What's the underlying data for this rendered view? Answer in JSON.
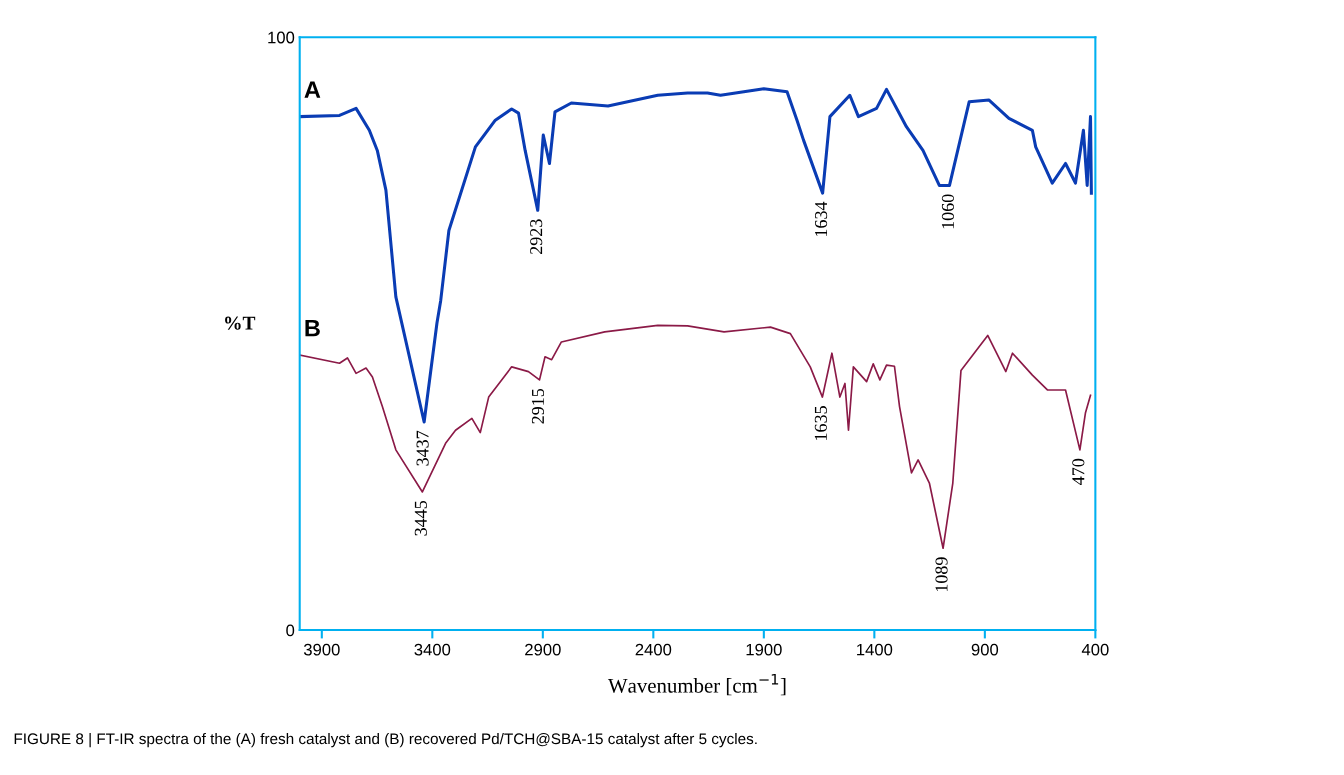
{
  "chart_data": {
    "type": "line",
    "xlabel": "Wavenumber [cm$^{−1}$]",
    "ylabel": "%T",
    "xlim": [
      4000,
      400
    ],
    "xticks": [
      3900,
      3400,
      2900,
      2400,
      1900,
      1400,
      900,
      400
    ],
    "ylim": [
      0,
      100
    ],
    "yticks": [
      0,
      100
    ],
    "grid": false,
    "legend": false,
    "marker": "none",
    "line_style": "solid",
    "series": [
      {
        "name": "A",
        "color": "#0a3cb4",
        "x": [
          4000,
          3820,
          3745,
          3685,
          3649,
          3610,
          3565,
          3437,
          3379,
          3362,
          3325,
          3205,
          3115,
          3041,
          3010,
          2980,
          2923,
          2898,
          2870,
          2845,
          2771,
          2605,
          2380,
          2245,
          2155,
          2096,
          1900,
          1795,
          1750,
          1720,
          1634,
          1601,
          1511,
          1472,
          1390,
          1345,
          1255,
          1180,
          1106,
          1060,
          971,
          881,
          791,
          685,
          670,
          595,
          535,
          490,
          454,
          437,
          422,
          418
        ],
        "values": [
          86.6,
          86.8,
          88,
          84.3,
          80.9,
          74.2,
          56.2,
          35.1,
          51.8,
          55.6,
          67.4,
          81.5,
          86,
          87.9,
          87.2,
          80.9,
          70.8,
          83.5,
          78.7,
          87.4,
          88.9,
          88.4,
          90.2,
          90.6,
          90.6,
          90.2,
          91.3,
          90.8,
          86,
          82.6,
          73.7,
          86.6,
          90.2,
          86.6,
          88,
          91.2,
          84.9,
          80.9,
          75,
          75,
          89.1,
          89.4,
          86.3,
          84.3,
          81.5,
          75.4,
          78.7,
          75.4,
          84.3,
          75,
          86.6,
          73.7
        ]
      },
      {
        "name": "B",
        "color": "#8b1a47",
        "x": [
          4000,
          3820,
          3784,
          3745,
          3700,
          3671,
          3626,
          3565,
          3445,
          3340,
          3295,
          3221,
          3183,
          3145,
          3041,
          2965,
          2915,
          2890,
          2860,
          2816,
          2620,
          2380,
          2245,
          2080,
          1870,
          1780,
          1690,
          1635,
          1592,
          1556,
          1533,
          1517,
          1495,
          1435,
          1405,
          1375,
          1345,
          1309,
          1286,
          1232,
          1202,
          1151,
          1089,
          1045,
          1008,
          887,
          805,
          775,
          685,
          617,
          535,
          470,
          445,
          422
        ],
        "values": [
          46.4,
          45,
          45.9,
          43.3,
          44.2,
          42.7,
          37.7,
          30.4,
          23.3,
          31.5,
          33.7,
          35.7,
          33.3,
          39.3,
          44.4,
          43.6,
          42.2,
          46.1,
          45.6,
          48.6,
          50.3,
          51.4,
          51.3,
          50.3,
          51.1,
          50,
          44.4,
          39.3,
          46.7,
          39.3,
          41.6,
          33.7,
          44.4,
          41.9,
          44.9,
          42.2,
          44.7,
          44.5,
          37.7,
          26.5,
          28.7,
          24.8,
          13.8,
          24.8,
          43.8,
          49.7,
          43.6,
          46.7,
          43,
          40.5,
          40.5,
          30.4,
          36.6,
          39.6
        ]
      }
    ],
    "annotations": [
      {
        "text": "2923",
        "x": 2923,
        "y": 70.8
      },
      {
        "text": "1634",
        "x": 1634,
        "y": 73.7
      },
      {
        "text": "1060",
        "x": 1060,
        "y": 75
      },
      {
        "text": "3437",
        "x": 3437,
        "y": 35.1
      },
      {
        "text": "3445",
        "x": 3445,
        "y": 23.3
      },
      {
        "text": "2915",
        "x": 2915,
        "y": 42.2
      },
      {
        "text": "1635",
        "x": 1635,
        "y": 39.3
      },
      {
        "text": "1089",
        "x": 1089,
        "y": 13.8
      },
      {
        "text": "470",
        "x": 470,
        "y": 30.4
      },
      "FIGURE 8 | FT-IR spectra of the (A) fresh catalyst and (B) recovered Pd/TCH@SBA-15 catalyst after 5 cycles."
    ]
  }
}
